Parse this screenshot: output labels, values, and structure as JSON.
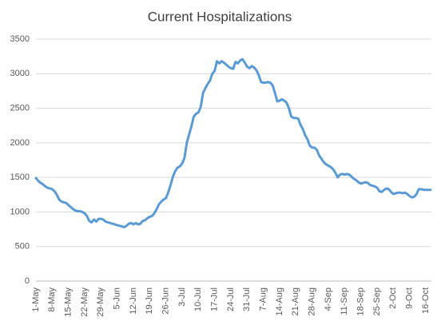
{
  "chart_data": {
    "type": "line",
    "title": "Current Hospitalizations",
    "categories": [
      "1-May",
      null,
      null,
      null,
      null,
      null,
      null,
      "8-May",
      null,
      null,
      null,
      null,
      null,
      null,
      "15-May",
      null,
      null,
      null,
      null,
      null,
      null,
      "22-May",
      null,
      null,
      null,
      null,
      null,
      null,
      "29-May",
      null,
      null,
      null,
      null,
      null,
      null,
      "5-Jun",
      null,
      null,
      null,
      null,
      null,
      null,
      "12-Jun",
      null,
      null,
      null,
      null,
      null,
      null,
      "19-Jun",
      null,
      null,
      null,
      null,
      null,
      null,
      "26-Jun",
      null,
      null,
      null,
      null,
      null,
      null,
      "3-Jul",
      null,
      null,
      null,
      null,
      null,
      null,
      "10-Jul",
      null,
      null,
      null,
      null,
      null,
      null,
      "17-Jul",
      null,
      null,
      null,
      null,
      null,
      null,
      "24-Jul",
      null,
      null,
      null,
      null,
      null,
      null,
      "31-Jul",
      null,
      null,
      null,
      null,
      null,
      null,
      "7-Aug",
      null,
      null,
      null,
      null,
      null,
      null,
      "14-Aug",
      null,
      null,
      null,
      null,
      null,
      null,
      "21-Aug",
      null,
      null,
      null,
      null,
      null,
      null,
      "28-Aug",
      null,
      null,
      null,
      null,
      null,
      null,
      "4-Sep",
      null,
      null,
      null,
      null,
      null,
      null,
      "11-Sep",
      null,
      null,
      null,
      null,
      null,
      null,
      "18-Sep",
      null,
      null,
      null,
      null,
      null,
      null,
      "25-Sep",
      null,
      null,
      null,
      null,
      null,
      null,
      "2-Oct",
      null,
      null,
      null,
      null,
      null,
      null,
      "9-Oct",
      null,
      null,
      null,
      null,
      null,
      null,
      "16-Oct",
      null,
      null
    ],
    "values": [
      1490,
      1450,
      1420,
      1400,
      1370,
      1350,
      1340,
      1330,
      1300,
      1250,
      1180,
      1150,
      1140,
      1130,
      1100,
      1070,
      1040,
      1020,
      1010,
      1010,
      1000,
      980,
      940,
      870,
      850,
      890,
      860,
      900,
      900,
      890,
      860,
      850,
      840,
      830,
      820,
      810,
      800,
      790,
      780,
      800,
      830,
      840,
      820,
      840,
      820,
      830,
      870,
      880,
      910,
      930,
      940,
      980,
      1040,
      1110,
      1150,
      1180,
      1200,
      1280,
      1390,
      1510,
      1590,
      1640,
      1660,
      1700,
      1780,
      2000,
      2120,
      2240,
      2380,
      2420,
      2440,
      2520,
      2720,
      2790,
      2850,
      2900,
      3000,
      3040,
      3180,
      3150,
      3180,
      3160,
      3130,
      3100,
      3080,
      3070,
      3170,
      3150,
      3190,
      3210,
      3160,
      3100,
      3080,
      3110,
      3090,
      3050,
      2980,
      2880,
      2870,
      2870,
      2880,
      2870,
      2830,
      2720,
      2600,
      2610,
      2630,
      2610,
      2580,
      2500,
      2380,
      2360,
      2360,
      2350,
      2260,
      2200,
      2110,
      2050,
      1960,
      1930,
      1930,
      1900,
      1820,
      1770,
      1720,
      1690,
      1670,
      1650,
      1620,
      1570,
      1500,
      1540,
      1550,
      1540,
      1550,
      1540,
      1510,
      1480,
      1460,
      1430,
      1410,
      1420,
      1430,
      1420,
      1390,
      1380,
      1370,
      1350,
      1300,
      1290,
      1320,
      1340,
      1330,
      1290,
      1260,
      1270,
      1280,
      1280,
      1270,
      1280,
      1260,
      1230,
      1210,
      1220,
      1260,
      1330,
      1330,
      1320,
      1320,
      1320,
      1320
    ],
    "color": "#5b9bd5",
    "ylim": [
      0,
      3500
    ],
    "yticks": [
      0,
      500,
      1000,
      1500,
      2000,
      2500,
      3000,
      3500
    ],
    "grid": true
  }
}
